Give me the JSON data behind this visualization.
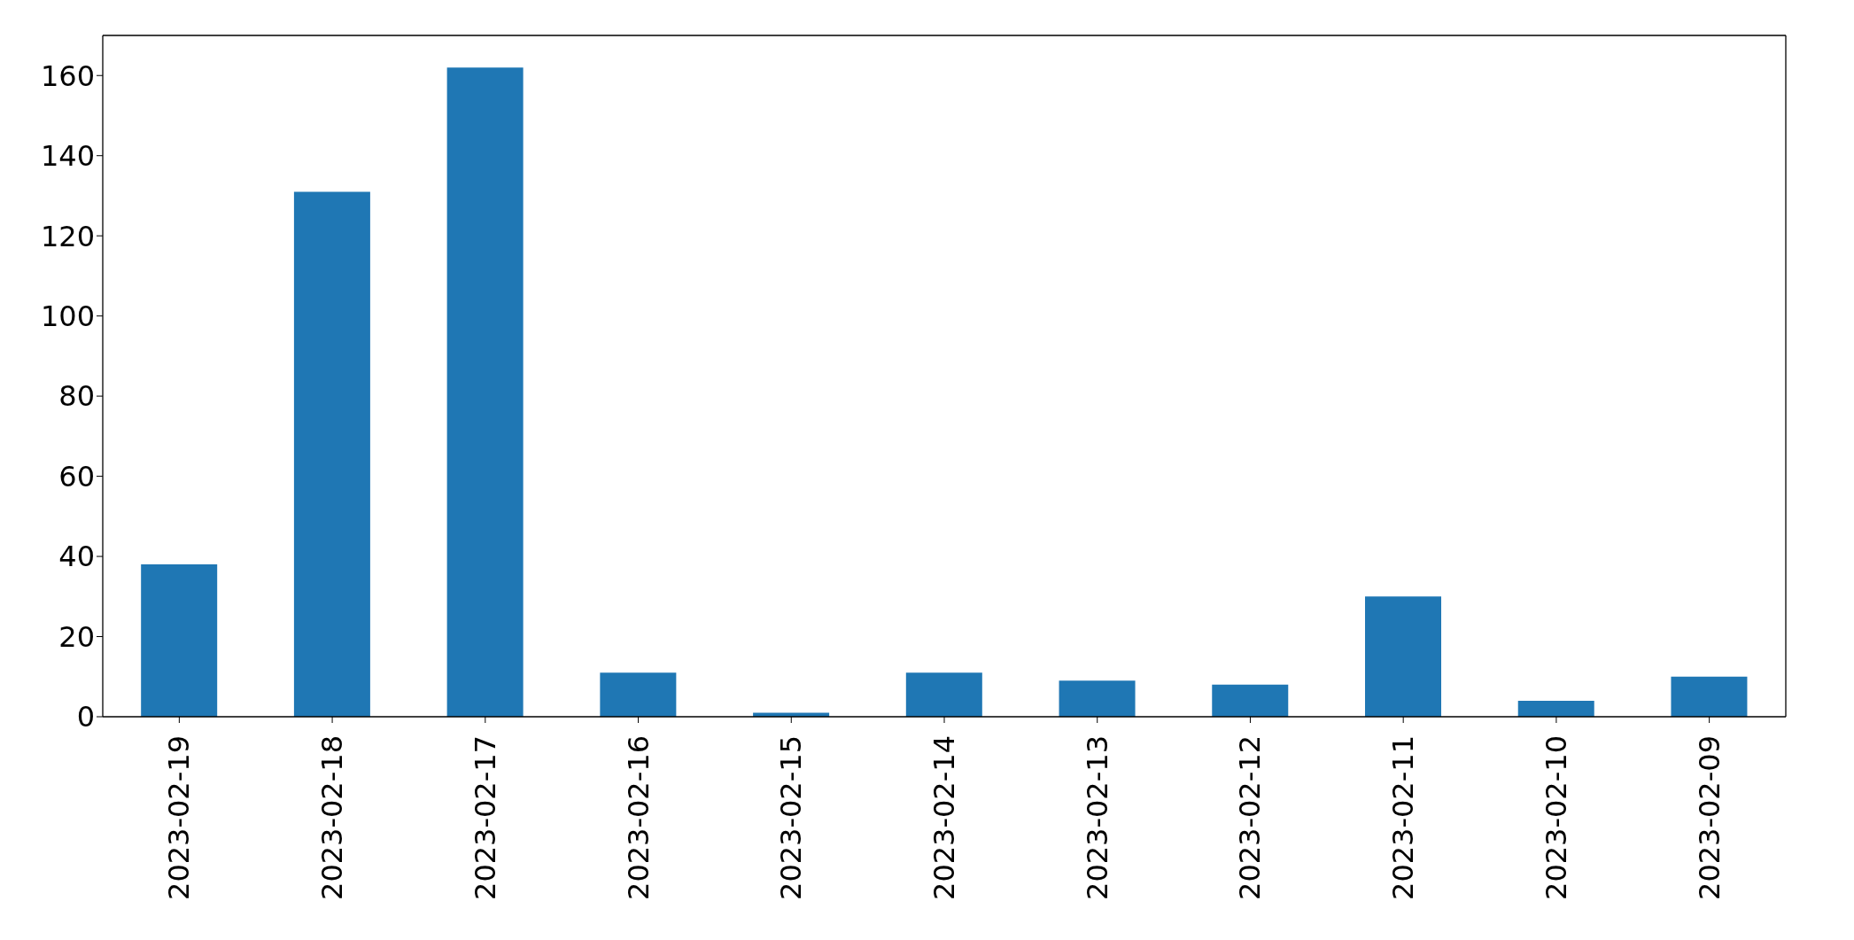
{
  "chart_data": {
    "type": "bar",
    "categories": [
      "2023-02-19",
      "2023-02-18",
      "2023-02-17",
      "2023-02-16",
      "2023-02-15",
      "2023-02-14",
      "2023-02-13",
      "2023-02-12",
      "2023-02-11",
      "2023-02-10",
      "2023-02-09"
    ],
    "values": [
      38,
      131,
      162,
      11,
      1,
      11,
      9,
      8,
      30,
      4,
      10
    ],
    "color": "#1f77b4",
    "ylim": [
      0,
      170
    ],
    "yticks": [
      0,
      20,
      40,
      60,
      80,
      100,
      120,
      140,
      160
    ]
  }
}
